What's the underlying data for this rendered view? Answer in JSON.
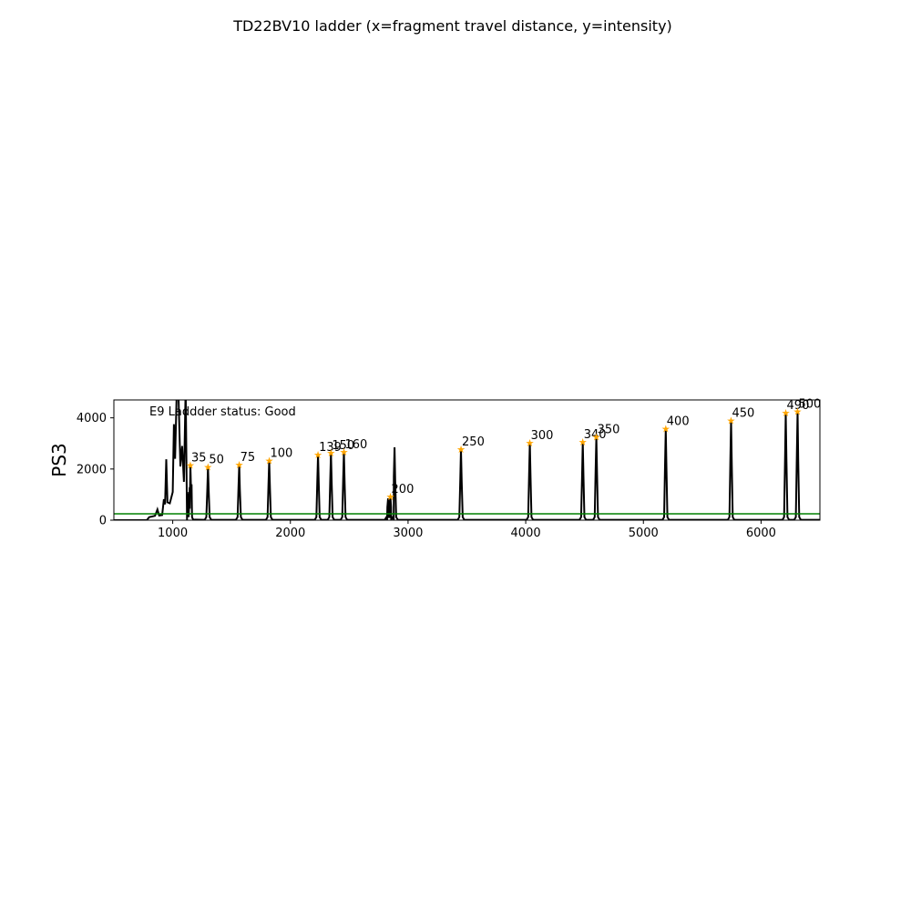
{
  "chart_data": {
    "type": "line",
    "title": "TD22BV10 ladder (x=fragment travel distance, y=intensity)",
    "xlabel": "",
    "ylabel": "PS3",
    "xlim": [
      500,
      6500
    ],
    "ylim": [
      0,
      4700
    ],
    "xticks": [
      1000,
      2000,
      3000,
      4000,
      5000,
      6000
    ],
    "yticks": [
      0,
      2000,
      4000
    ],
    "grid": false,
    "status_text": "E9 Laddder status: Good",
    "threshold": 250,
    "colors": {
      "trace": "#000000",
      "threshold": "#008000",
      "marker": "#ffa500"
    },
    "ladder_peaks": [
      {
        "label": "35",
        "x": 1150,
        "y": 2150
      },
      {
        "label": "50",
        "x": 1300,
        "y": 2080
      },
      {
        "label": "75",
        "x": 1565,
        "y": 2170
      },
      {
        "label": "100",
        "x": 1820,
        "y": 2330
      },
      {
        "label": "139",
        "x": 2235,
        "y": 2570
      },
      {
        "label": "150",
        "x": 2345,
        "y": 2640
      },
      {
        "label": "160",
        "x": 2455,
        "y": 2670
      },
      {
        "label": "200",
        "x": 2850,
        "y": 920
      },
      {
        "label": "250",
        "x": 3450,
        "y": 2780
      },
      {
        "label": "300",
        "x": 4035,
        "y": 3030
      },
      {
        "label": "340",
        "x": 4485,
        "y": 3060
      },
      {
        "label": "350",
        "x": 4600,
        "y": 3250
      },
      {
        "label": "400",
        "x": 5190,
        "y": 3570
      },
      {
        "label": "450",
        "x": 5745,
        "y": 3900
      },
      {
        "label": "490",
        "x": 6210,
        "y": 4200
      },
      {
        "label": "500",
        "x": 6310,
        "y": 4260
      }
    ],
    "extra_peaks": [
      {
        "x": 2885,
        "y": 2850
      },
      {
        "x": 2830,
        "y": 850
      }
    ],
    "primer_region": [
      [
        800,
        120
      ],
      [
        850,
        170
      ],
      [
        870,
        420
      ],
      [
        885,
        180
      ],
      [
        910,
        200
      ],
      [
        925,
        820
      ],
      [
        935,
        620
      ],
      [
        945,
        2380
      ],
      [
        955,
        700
      ],
      [
        975,
        660
      ],
      [
        1000,
        1100
      ],
      [
        1010,
        3750
      ],
      [
        1020,
        2400
      ],
      [
        1035,
        5200
      ],
      [
        1050,
        4800
      ],
      [
        1065,
        2100
      ],
      [
        1080,
        2900
      ],
      [
        1095,
        1500
      ],
      [
        1110,
        5200
      ],
      [
        1125,
        1100
      ],
      [
        1135,
        600
      ],
      [
        1145,
        450
      ],
      [
        1160,
        1400
      ],
      [
        1170,
        60
      ],
      [
        1190,
        20
      ]
    ]
  }
}
